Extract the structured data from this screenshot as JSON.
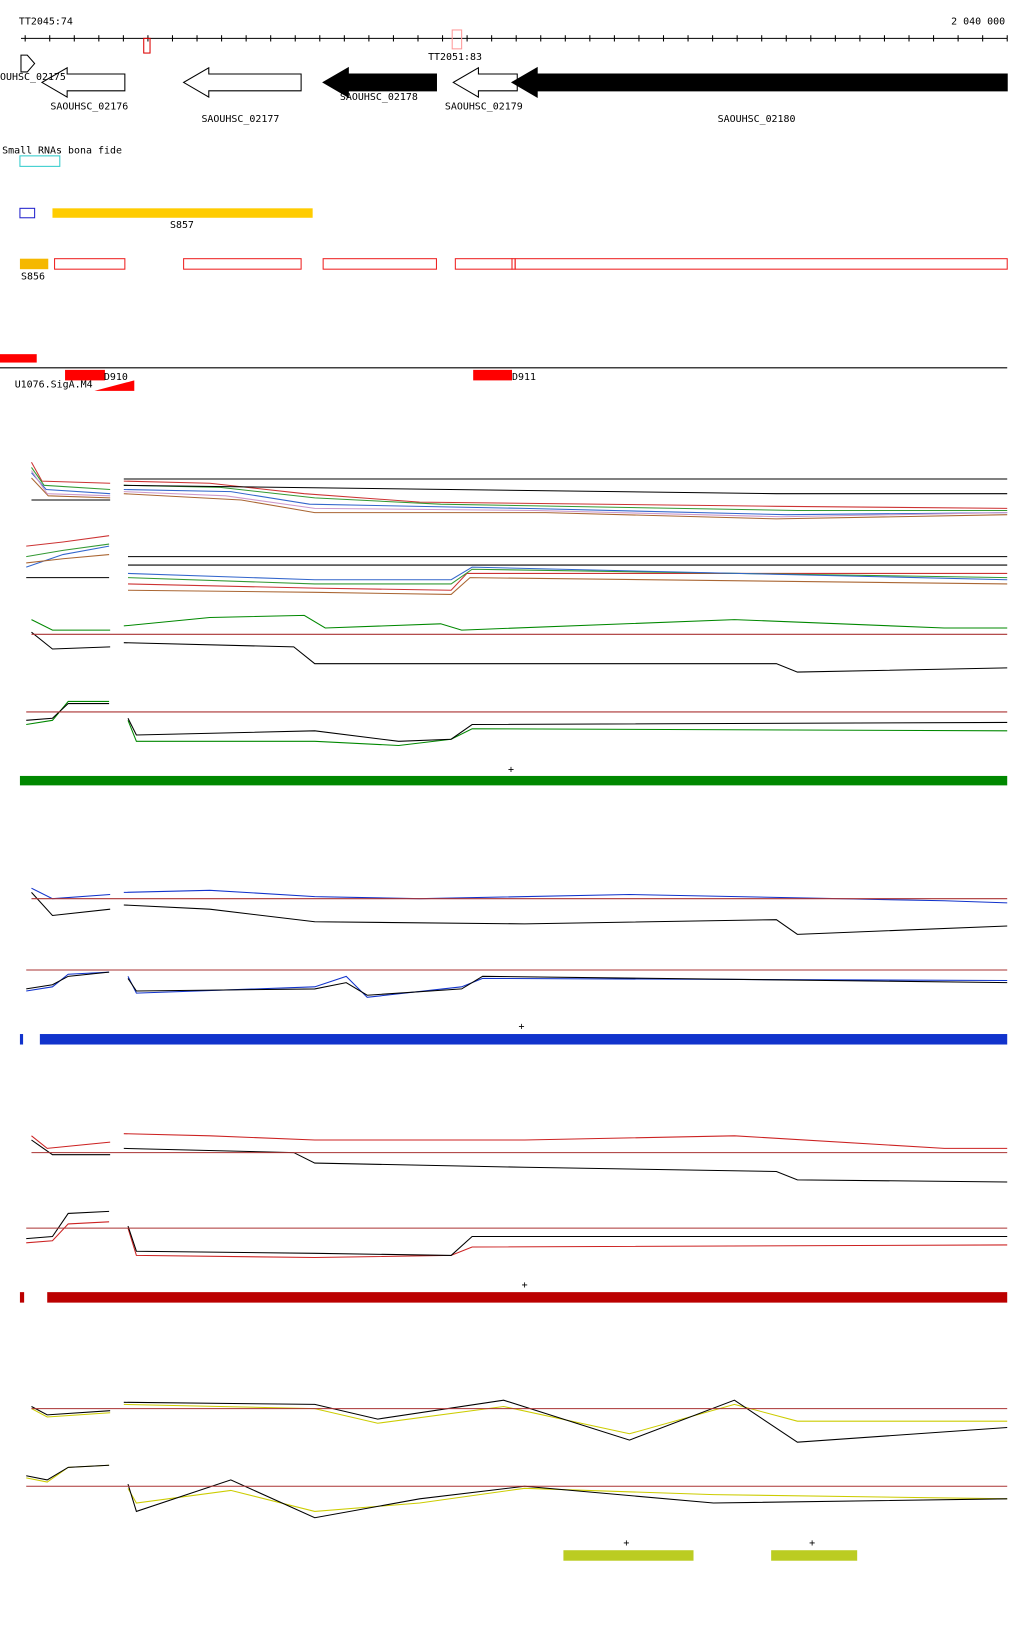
{
  "ruler": {
    "start": "TT2045:74",
    "end": "2 040 000"
  },
  "genes": [
    {
      "label": "OUHSC_02175"
    },
    {
      "label": "SAOUHSC_02176"
    },
    {
      "label": "SAOUHSC_02177"
    },
    {
      "label": "SAOUHSC_02178"
    },
    {
      "label": "SAOUHSC_02179"
    },
    {
      "label": "SAOUHSC_02180"
    }
  ],
  "terminator": "TT2051:83",
  "small_rnas": {
    "title": "Small RNAs bona fide",
    "features": [
      "S857",
      "S856"
    ]
  },
  "promoters": {
    "features": [
      "D910",
      "D911"
    ],
    "sigma": "U1076.SigA.M4"
  },
  "strand_marks": [
    "+",
    "+",
    "+",
    "+",
    "+"
  ]
}
